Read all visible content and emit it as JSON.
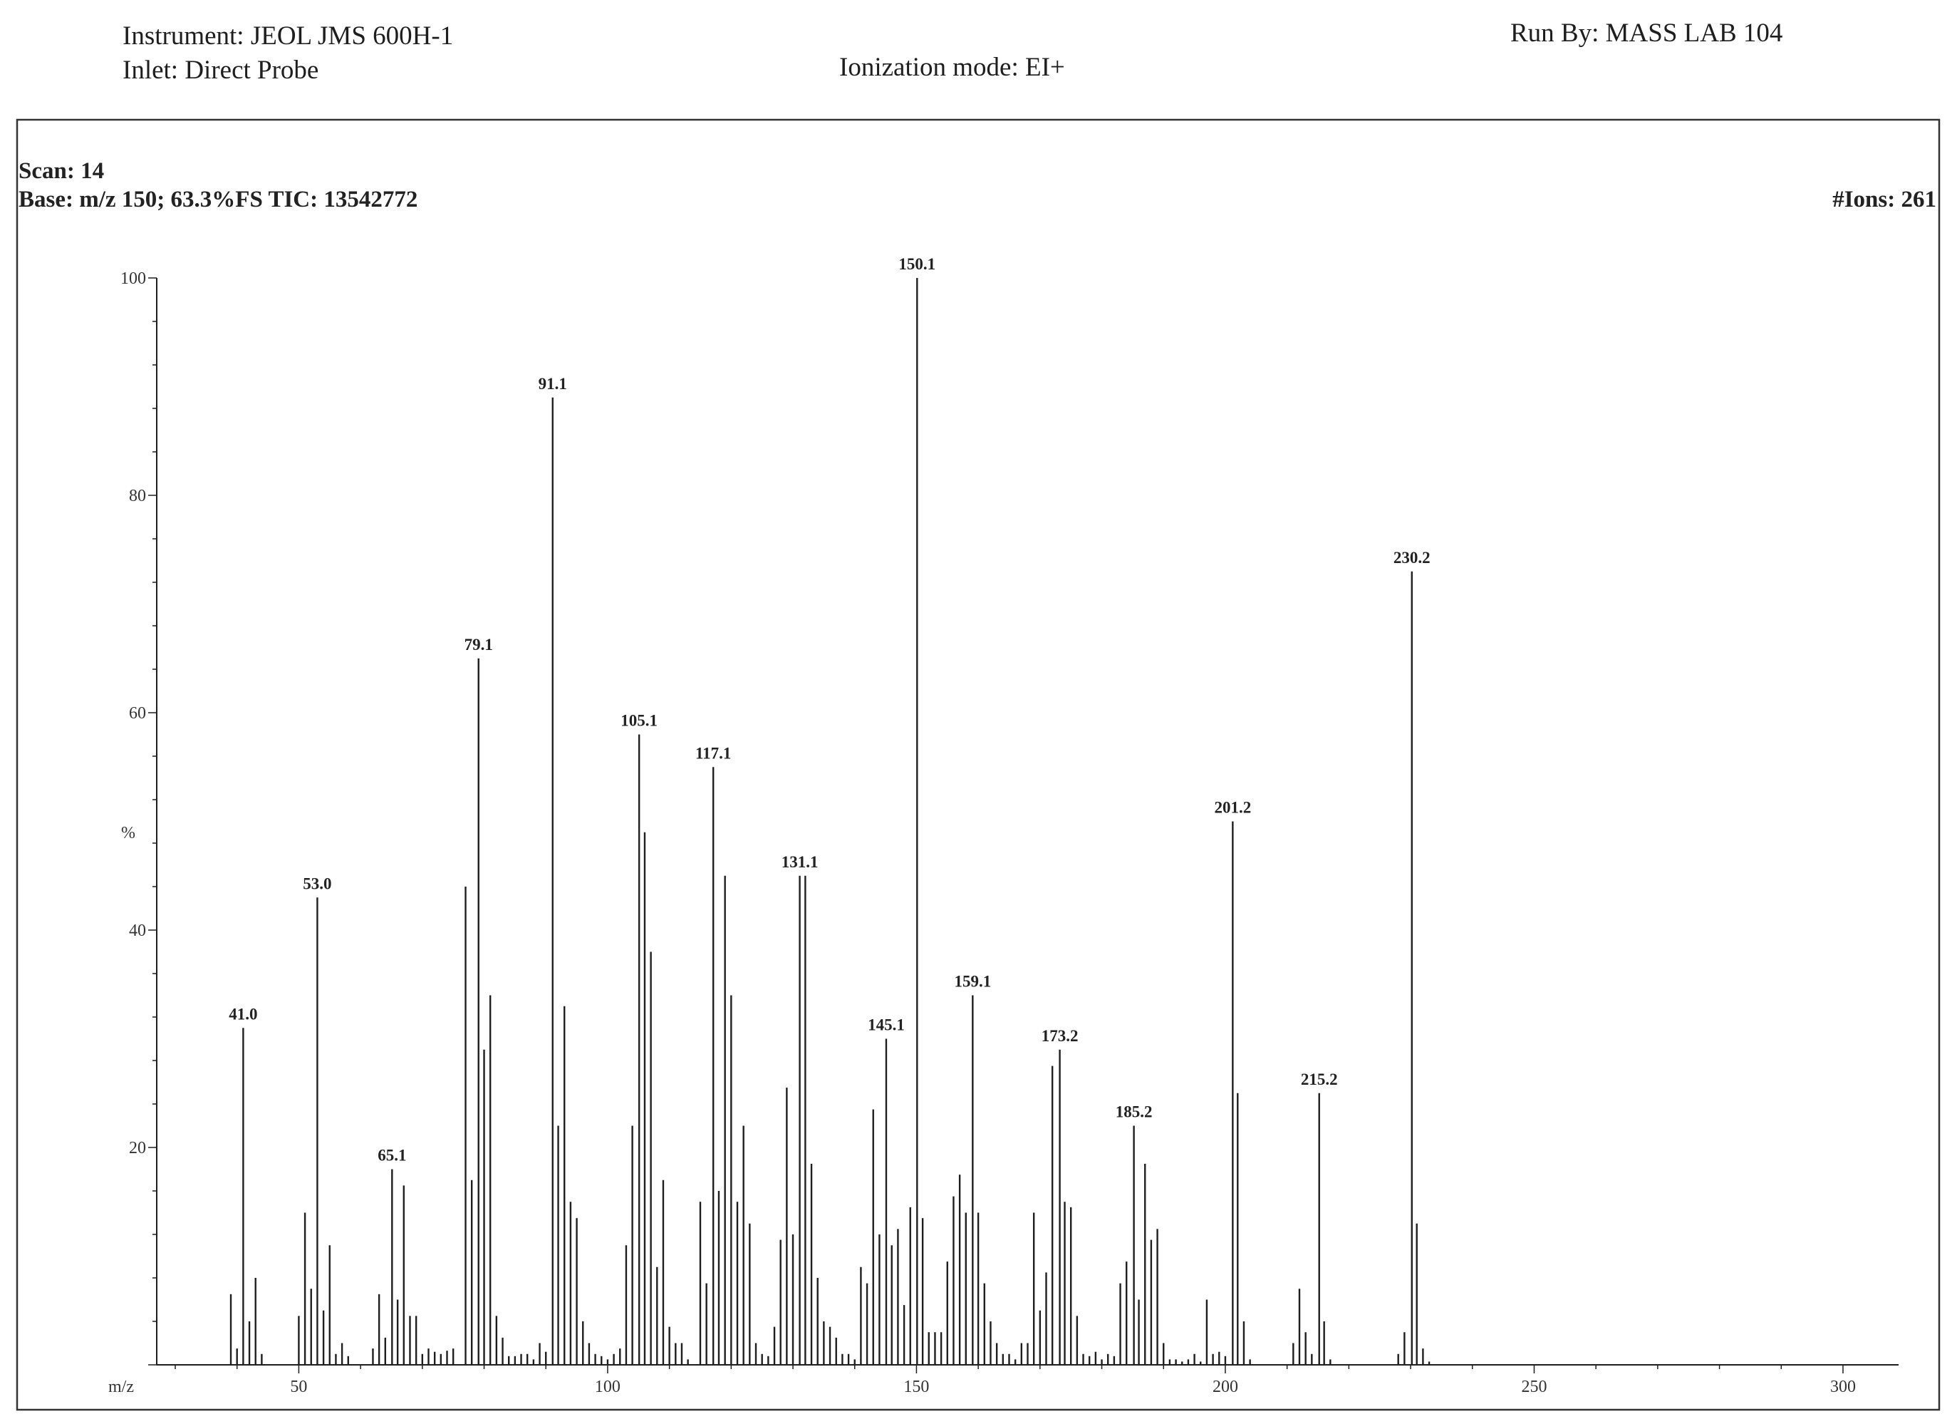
{
  "header": {
    "instrument": "Instrument: JEOL JMS 600H-1",
    "inlet": "Inlet: Direct Probe",
    "ionization": "Ionization mode: EI+",
    "run_by": "Run By: MASS LAB 104"
  },
  "panel": {
    "scan": "Scan: 14",
    "base": "Base: m/z 150; 63.3%FS  TIC: 13542772",
    "ions": "#Ions: 261"
  },
  "colors": {
    "ink": "#1e1e1e",
    "frame": "#333333"
  },
  "chart_data": {
    "type": "bar",
    "xlabel": "m/z",
    "ylabel": "%",
    "xlim": [
      27,
      309
    ],
    "ylim": [
      0,
      100
    ],
    "x_ticks": [
      50,
      100,
      150,
      200,
      250,
      300
    ],
    "y_ticks": [
      20,
      40,
      60,
      80,
      100
    ],
    "grid": false,
    "labeled_peaks": [
      {
        "mz": 41.0,
        "label": "41.0",
        "intensity": 31
      },
      {
        "mz": 53.0,
        "label": "53.0",
        "intensity": 43
      },
      {
        "mz": 65.1,
        "label": "65.1",
        "intensity": 18
      },
      {
        "mz": 79.1,
        "label": "79.1",
        "intensity": 65
      },
      {
        "mz": 91.1,
        "label": "91.1",
        "intensity": 89
      },
      {
        "mz": 105.1,
        "label": "105.1",
        "intensity": 58
      },
      {
        "mz": 117.1,
        "label": "117.1",
        "intensity": 55
      },
      {
        "mz": 131.1,
        "label": "131.1",
        "intensity": 45
      },
      {
        "mz": 145.1,
        "label": "145.1",
        "intensity": 30
      },
      {
        "mz": 150.1,
        "label": "150.1",
        "intensity": 100
      },
      {
        "mz": 159.1,
        "label": "159.1",
        "intensity": 34
      },
      {
        "mz": 173.2,
        "label": "173.2",
        "intensity": 29
      },
      {
        "mz": 185.2,
        "label": "185.2",
        "intensity": 22
      },
      {
        "mz": 201.2,
        "label": "201.2",
        "intensity": 50
      },
      {
        "mz": 215.2,
        "label": "215.2",
        "intensity": 25
      },
      {
        "mz": 230.2,
        "label": "230.2",
        "intensity": 73
      }
    ],
    "peaks": [
      [
        39,
        6.5
      ],
      [
        40,
        1.5
      ],
      [
        42,
        4
      ],
      [
        43,
        8
      ],
      [
        44,
        1
      ],
      [
        50,
        4.5
      ],
      [
        51,
        14
      ],
      [
        52,
        7
      ],
      [
        54,
        5
      ],
      [
        55,
        11
      ],
      [
        56,
        1
      ],
      [
        57,
        2
      ],
      [
        58,
        0.8
      ],
      [
        62,
        1.5
      ],
      [
        63,
        6.5
      ],
      [
        64,
        2.5
      ],
      [
        66,
        6
      ],
      [
        67,
        16.5
      ],
      [
        68,
        4.5
      ],
      [
        69,
        4.5
      ],
      [
        70,
        1
      ],
      [
        71,
        1.5
      ],
      [
        72,
        1.2
      ],
      [
        73,
        1
      ],
      [
        74,
        1.3
      ],
      [
        75,
        1.5
      ],
      [
        77,
        44
      ],
      [
        78,
        17
      ],
      [
        80,
        29
      ],
      [
        81,
        34
      ],
      [
        82,
        4.5
      ],
      [
        83,
        2.5
      ],
      [
        84,
        0.8
      ],
      [
        85,
        0.8
      ],
      [
        86,
        1
      ],
      [
        87,
        1
      ],
      [
        88,
        0.5
      ],
      [
        89,
        2
      ],
      [
        90,
        1.2
      ],
      [
        92,
        22
      ],
      [
        93,
        33
      ],
      [
        94,
        15
      ],
      [
        95,
        13.5
      ],
      [
        96,
        4
      ],
      [
        97,
        2
      ],
      [
        98,
        1
      ],
      [
        99,
        0.8
      ],
      [
        100,
        0.5
      ],
      [
        101,
        1
      ],
      [
        102,
        1.5
      ],
      [
        103,
        11
      ],
      [
        104,
        22
      ],
      [
        106,
        49
      ],
      [
        107,
        38
      ],
      [
        108,
        9
      ],
      [
        109,
        17
      ],
      [
        110,
        3.5
      ],
      [
        111,
        2
      ],
      [
        112,
        2
      ],
      [
        113,
        0.5
      ],
      [
        115,
        15
      ],
      [
        116,
        7.5
      ],
      [
        118,
        16
      ],
      [
        119,
        45
      ],
      [
        120,
        34
      ],
      [
        121,
        15
      ],
      [
        122,
        22
      ],
      [
        123,
        13
      ],
      [
        124,
        2
      ],
      [
        125,
        1
      ],
      [
        126,
        0.8
      ],
      [
        127,
        3.5
      ],
      [
        128,
        11.5
      ],
      [
        129,
        25.5
      ],
      [
        130,
        12
      ],
      [
        132,
        45
      ],
      [
        133,
        18.5
      ],
      [
        134,
        8
      ],
      [
        135,
        4
      ],
      [
        136,
        3.5
      ],
      [
        137,
        2.5
      ],
      [
        138,
        1
      ],
      [
        139,
        1
      ],
      [
        140,
        0.5
      ],
      [
        141,
        9
      ],
      [
        142,
        7.5
      ],
      [
        143,
        23.5
      ],
      [
        144,
        12
      ],
      [
        146,
        11
      ],
      [
        147,
        12.5
      ],
      [
        148,
        5.5
      ],
      [
        149,
        14.5
      ],
      [
        151,
        13.5
      ],
      [
        152,
        3
      ],
      [
        153,
        3
      ],
      [
        154,
        3
      ],
      [
        155,
        9.5
      ],
      [
        156,
        15.5
      ],
      [
        157,
        17.5
      ],
      [
        158,
        14
      ],
      [
        160,
        14
      ],
      [
        161,
        7.5
      ],
      [
        162,
        4
      ],
      [
        163,
        2
      ],
      [
        164,
        1
      ],
      [
        165,
        1
      ],
      [
        166,
        0.5
      ],
      [
        167,
        2
      ],
      [
        168,
        2
      ],
      [
        169,
        14
      ],
      [
        170,
        5
      ],
      [
        171,
        8.5
      ],
      [
        172,
        27.5
      ],
      [
        174,
        15
      ],
      [
        175,
        14.5
      ],
      [
        176,
        4.5
      ],
      [
        177,
        1
      ],
      [
        178,
        0.8
      ],
      [
        179,
        1.2
      ],
      [
        180,
        0.5
      ],
      [
        181,
        1
      ],
      [
        182,
        0.8
      ],
      [
        183,
        7.5
      ],
      [
        184,
        9.5
      ],
      [
        186,
        6
      ],
      [
        187,
        18.5
      ],
      [
        188,
        11.5
      ],
      [
        189,
        12.5
      ],
      [
        190,
        2
      ],
      [
        191,
        0.5
      ],
      [
        192,
        0.5
      ],
      [
        193,
        0.3
      ],
      [
        194,
        0.5
      ],
      [
        195,
        1
      ],
      [
        196,
        0.3
      ],
      [
        197,
        6
      ],
      [
        198,
        1
      ],
      [
        199,
        1.2
      ],
      [
        200,
        0.8
      ],
      [
        202,
        25
      ],
      [
        203,
        4
      ],
      [
        204,
        0.5
      ],
      [
        211,
        2
      ],
      [
        212,
        7
      ],
      [
        213,
        3
      ],
      [
        214,
        1
      ],
      [
        216,
        4
      ],
      [
        217,
        0.5
      ],
      [
        228,
        1
      ],
      [
        229,
        3
      ],
      [
        231,
        13
      ],
      [
        232,
        1.5
      ],
      [
        233,
        0.3
      ]
    ]
  }
}
